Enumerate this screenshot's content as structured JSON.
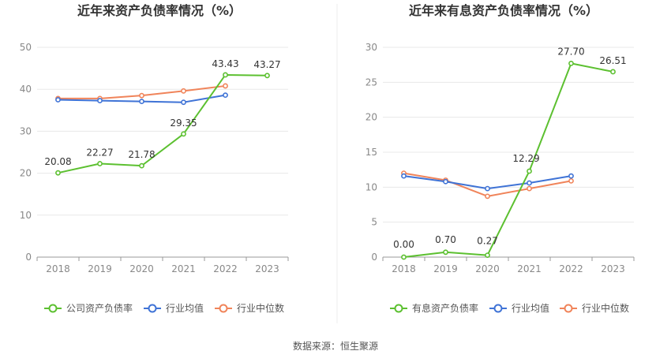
{
  "source": "数据来源：恒生聚源",
  "chart_data": [
    {
      "type": "line",
      "title": "近年来资产负债率情况（%）",
      "categories": [
        "2018",
        "2019",
        "2020",
        "2021",
        "2022",
        "2023"
      ],
      "ylim": [
        0,
        50
      ],
      "yticks": [
        0,
        10,
        20,
        30,
        40,
        50
      ],
      "ytick_labels": [
        "0",
        "10",
        "20",
        "30",
        "40",
        "50"
      ],
      "legend_position": "bottom",
      "series": [
        {
          "name": "公司资产负债率",
          "color": "#5cc030",
          "values": [
            20.08,
            22.27,
            21.78,
            29.35,
            43.43,
            43.27
          ],
          "labels": [
            "20.08",
            "22.27",
            "21.78",
            "29.35",
            "43.43",
            "43.27"
          ]
        },
        {
          "name": "行业均值",
          "color": "#3f73d6",
          "values": [
            37.5,
            37.3,
            37.1,
            36.9,
            38.6,
            null
          ]
        },
        {
          "name": "行业中位数",
          "color": "#f0845a",
          "values": [
            37.8,
            37.8,
            38.5,
            39.6,
            40.8,
            null
          ]
        }
      ]
    },
    {
      "type": "line",
      "title": "近年来有息资产负债率情况（%）",
      "categories": [
        "2018",
        "2019",
        "2020",
        "2021",
        "2022",
        "2023"
      ],
      "ylim": [
        0,
        30
      ],
      "yticks": [
        0,
        5,
        10,
        15,
        20,
        25,
        30
      ],
      "ytick_labels": [
        "0",
        "5",
        "10",
        "15",
        "20",
        "25",
        "30"
      ],
      "legend_position": "bottom",
      "series": [
        {
          "name": "有息资产负债率",
          "color": "#5cc030",
          "values": [
            0.0,
            0.7,
            0.27,
            12.29,
            27.7,
            26.51
          ],
          "labels": [
            "0.00",
            "0.70",
            "0.27",
            "12.29",
            "27.70",
            "26.51"
          ]
        },
        {
          "name": "行业均值",
          "color": "#3f73d6",
          "values": [
            11.6,
            10.8,
            9.8,
            10.6,
            11.6,
            null
          ]
        },
        {
          "name": "行业中位数",
          "color": "#f0845a",
          "values": [
            12.0,
            11.0,
            8.7,
            9.8,
            10.9,
            null
          ]
        }
      ]
    }
  ]
}
